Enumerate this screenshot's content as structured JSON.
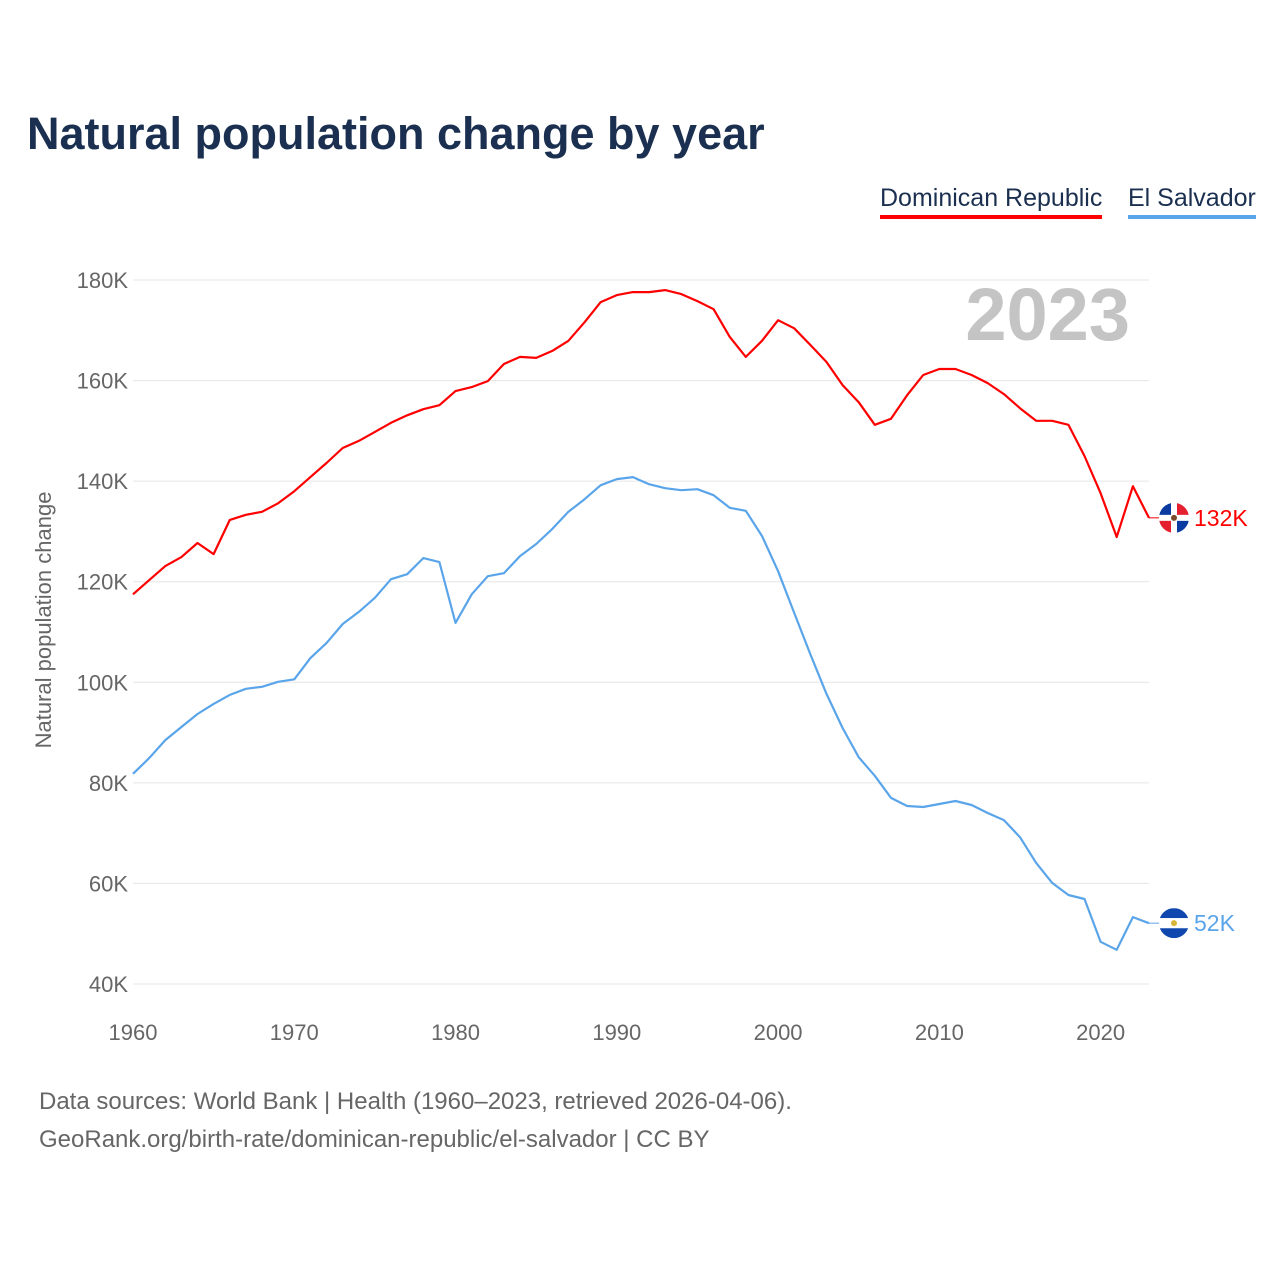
{
  "chart_data": {
    "type": "line",
    "title": "Natural population change by year",
    "xlabel": "",
    "ylabel": "Natural population change",
    "xlim": [
      1960,
      2023
    ],
    "ylim": [
      40000,
      180000
    ],
    "x_ticks": [
      1960,
      1970,
      1980,
      1990,
      2000,
      2010,
      2020
    ],
    "x_tick_labels": [
      "1960",
      "1970",
      "1980",
      "1990",
      "2000",
      "2010",
      "2020"
    ],
    "y_ticks": [
      40000,
      60000,
      80000,
      100000,
      120000,
      140000,
      160000,
      180000
    ],
    "y_tick_labels": [
      "40K",
      "60K",
      "80K",
      "100K",
      "120K",
      "140K",
      "160K",
      "180K"
    ],
    "grid": true,
    "legend_position": "top-right",
    "year_annotation": "2023",
    "x": [
      1960,
      1961,
      1962,
      1963,
      1964,
      1965,
      1966,
      1967,
      1968,
      1969,
      1970,
      1971,
      1972,
      1973,
      1974,
      1975,
      1976,
      1977,
      1978,
      1979,
      1980,
      1981,
      1982,
      1983,
      1984,
      1985,
      1986,
      1987,
      1988,
      1989,
      1990,
      1991,
      1992,
      1993,
      1994,
      1995,
      1996,
      1997,
      1998,
      1999,
      2000,
      2001,
      2002,
      2003,
      2004,
      2005,
      2006,
      2007,
      2008,
      2009,
      2010,
      2011,
      2012,
      2013,
      2014,
      2015,
      2016,
      2017,
      2018,
      2019,
      2020,
      2021,
      2022,
      2023
    ],
    "series": [
      {
        "name": "Dominican Republic",
        "color": "#ff0000",
        "end_label": "132K",
        "values": [
          117500,
          120300,
          123100,
          124900,
          127700,
          125500,
          132300,
          133300,
          133900,
          135600,
          138000,
          140800,
          143600,
          146600,
          148000,
          149800,
          151600,
          153100,
          154300,
          155100,
          157900,
          158700,
          159900,
          163300,
          164700,
          164500,
          165900,
          167900,
          171600,
          175600,
          177000,
          177600,
          177600,
          178000,
          177200,
          175800,
          174200,
          168700,
          164700,
          167900,
          172000,
          170400,
          167100,
          163700,
          159100,
          155700,
          151200,
          152400,
          157100,
          161100,
          162300,
          162300,
          161100,
          159500,
          157300,
          154500,
          152000,
          152000,
          151200,
          145000,
          137600,
          128900,
          139000,
          132700
        ]
      },
      {
        "name": "El Salvador",
        "color": "#5aa5ea",
        "end_label": "52K",
        "values": [
          81800,
          84900,
          88500,
          91100,
          93700,
          95700,
          97500,
          98700,
          99100,
          100100,
          100600,
          104800,
          107800,
          111600,
          114000,
          116800,
          120500,
          121500,
          124700,
          123900,
          111800,
          117500,
          121100,
          121700,
          125100,
          127500,
          130500,
          133900,
          136400,
          139200,
          140400,
          140800,
          139400,
          138600,
          138200,
          138400,
          137200,
          134700,
          134100,
          129100,
          122100,
          113800,
          105600,
          97700,
          90900,
          85100,
          81400,
          77000,
          75400,
          75200,
          75800,
          76400,
          75600,
          74000,
          72600,
          69200,
          64100,
          60100,
          57700,
          56900,
          48400,
          46800,
          53300,
          52100
        ]
      }
    ]
  },
  "footer": {
    "line1": "Data sources: World Bank | Health (1960–2023, retrieved 2026-04-06).",
    "line2": "GeoRank.org/birth-rate/dominican-republic/el-salvador | CC BY"
  }
}
